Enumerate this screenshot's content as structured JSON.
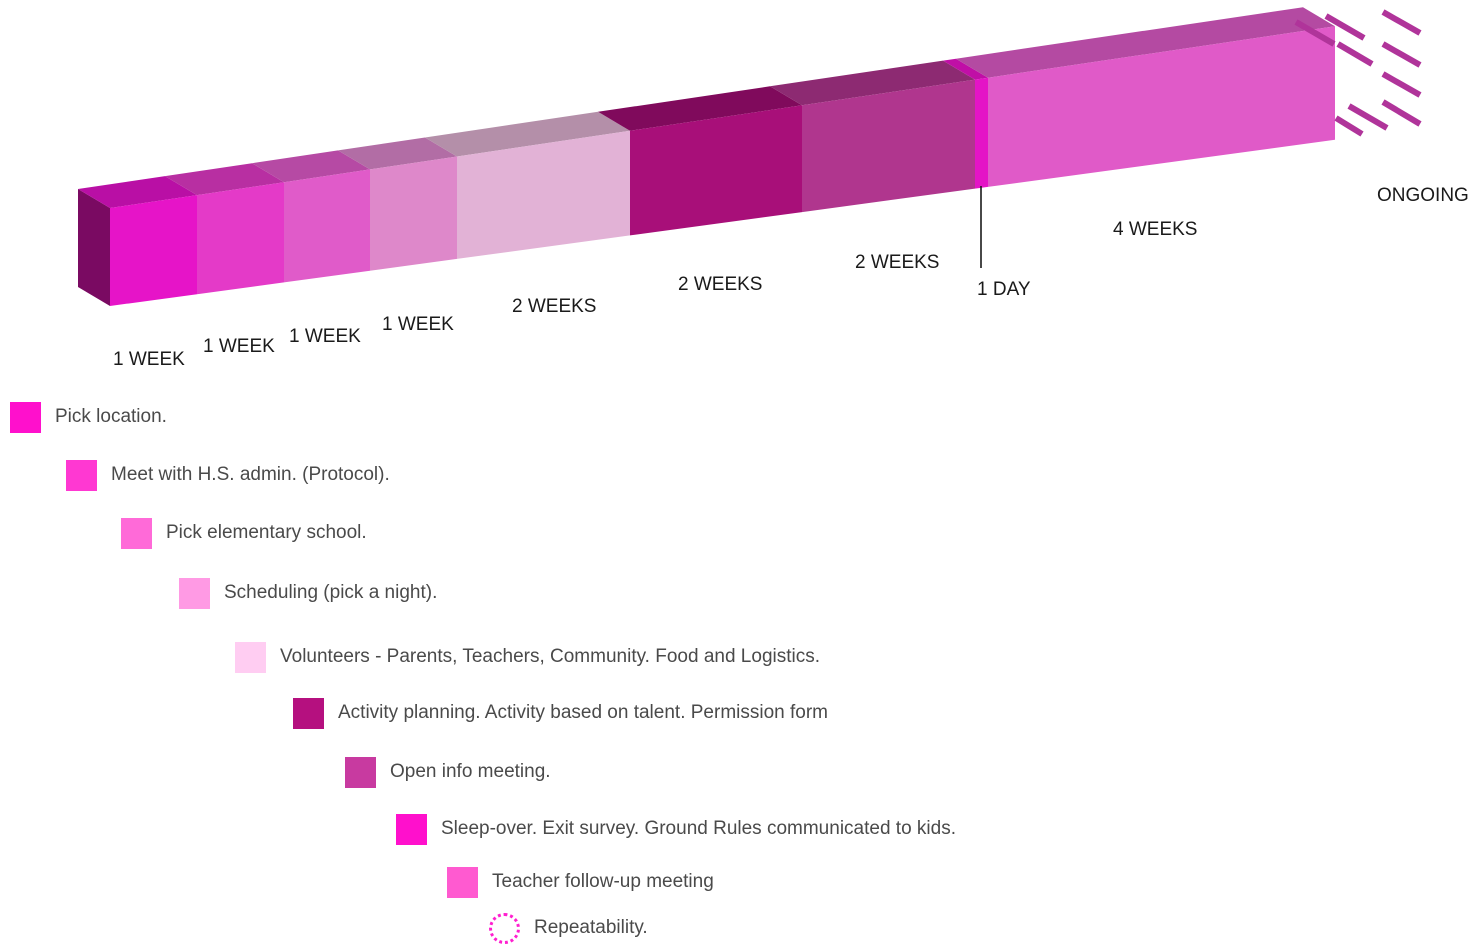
{
  "timeline": {
    "segments": [
      {
        "duration": "1 WEEK",
        "front": "#e614c8",
        "top": "#b90fa5"
      },
      {
        "duration": "1 WEEK",
        "front": "#e43ac8",
        "top": "#b82fa2"
      },
      {
        "duration": "1 WEEK",
        "front": "#e05bc9",
        "top": "#b64aa4"
      },
      {
        "duration": "1 WEEK",
        "front": "#de88ca",
        "top": "#b26da5"
      },
      {
        "duration": "2 WEEKS",
        "front": "#e2b2d6",
        "top": "#b48fa9"
      },
      {
        "duration": "2 WEEKS",
        "front": "#a80f79",
        "top": "#800a5c"
      },
      {
        "duration": "2 WEEKS",
        "front": "#b0368e",
        "top": "#8d2a72"
      },
      {
        "duration": "1 DAY",
        "front": "#e414c6",
        "top": "#c00fa6"
      },
      {
        "duration": "4 WEEKS",
        "front": "#e05ac8",
        "top": "#b44aa2"
      }
    ],
    "end_face_color": "#7a0a62",
    "ongoing_label": "ONGOING",
    "dash_color": "#b0349a"
  },
  "legend": {
    "items": [
      {
        "label": "Pick location.",
        "color": "#ff10cc"
      },
      {
        "label": "Meet with H.S. admin. (Protocol).",
        "color": "#ff38d2"
      },
      {
        "label": "Pick elementary school.",
        "color": "#ff6ad8"
      },
      {
        "label": "Scheduling (pick a night).",
        "color": "#ff9ae4"
      },
      {
        "label": "Volunteers - Parents, Teachers, Community. Food and Logistics.",
        "color": "#ffcdf2"
      },
      {
        "label": "Activity planning. Activity based on talent. Permission form",
        "color": "#b5107f"
      },
      {
        "label": "Open info meeting.",
        "color": "#c83aa0"
      },
      {
        "label": "Sleep-over. Exit survey. Ground Rules communicated to kids.",
        "color": "#ff10cc"
      },
      {
        "label": "Teacher follow-up meeting",
        "color": "#ff5ad0"
      },
      {
        "label": "Repeatability.",
        "color": "dotted-outline"
      }
    ]
  }
}
